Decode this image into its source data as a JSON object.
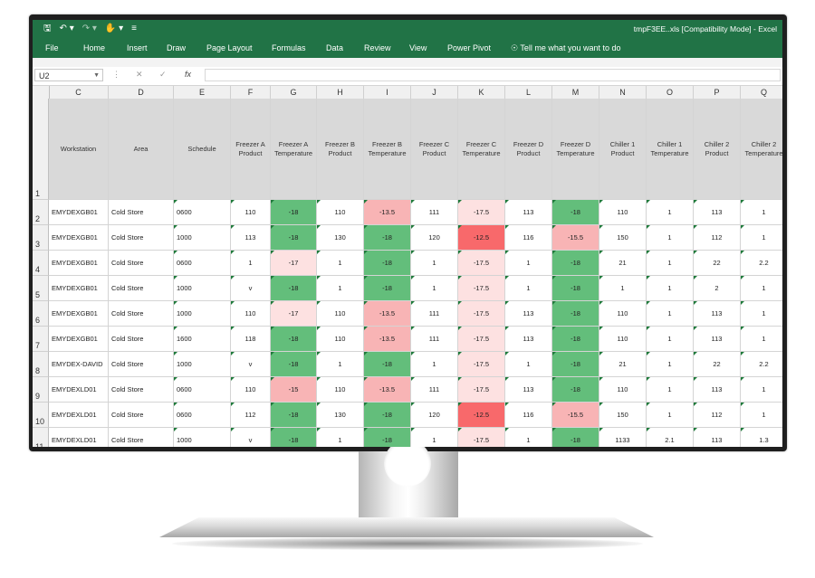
{
  "window": {
    "title": "tmpF3EE..xls  [Compatibility Mode]  -  Excel"
  },
  "quick_access": {
    "save_icon": "save-icon",
    "undo_icon": "undo-icon",
    "redo_icon": "redo-icon",
    "touch_icon": "touch-mode-icon",
    "customize_icon": "customize-icon"
  },
  "ribbon": {
    "tabs": [
      "File",
      "Home",
      "Insert",
      "Draw",
      "Page Layout",
      "Formulas",
      "Data",
      "Review",
      "View",
      "Power Pivot"
    ],
    "tell_me": "Tell me what you want to do"
  },
  "formula_bar": {
    "name_box": "U2",
    "fx_label": "fx",
    "formula": ""
  },
  "sheet": {
    "columns": [
      "C",
      "D",
      "E",
      "F",
      "G",
      "H",
      "I",
      "J",
      "K",
      "L",
      "M",
      "N",
      "O",
      "P",
      "Q"
    ],
    "header_row_number": "1",
    "headers": [
      "Workstation",
      "Area",
      "Schedule",
      "Freezer A Product",
      "Freezer A Temperature",
      "Freezer B Product",
      "Freezer B Temperature",
      "Freezer C Product",
      "Freezer C Temperature",
      "Freezer D Product",
      "Freezer D Temperature",
      "Chiller 1 Product",
      "Chiller 1 Temperature",
      "Chiller 2 Product",
      "Chiller 2 Temperature"
    ],
    "rows": [
      {
        "n": "2",
        "cells": [
          "EMYDEXGB01",
          "Cold Store",
          "0600",
          "110",
          "-18",
          "110",
          "-13.5",
          "111",
          "-17.5",
          "113",
          "-18",
          "110",
          "1",
          "113",
          "1"
        ]
      },
      {
        "n": "3",
        "cells": [
          "EMYDEXGB01",
          "Cold Store",
          "1000",
          "113",
          "-18",
          "130",
          "-18",
          "120",
          "-12.5",
          "116",
          "-15.5",
          "150",
          "1",
          "112",
          "1"
        ]
      },
      {
        "n": "4",
        "cells": [
          "EMYDEXGB01",
          "Cold Store",
          "0600",
          "1",
          "-17",
          "1",
          "-18",
          "1",
          "-17.5",
          "1",
          "-18",
          "21",
          "1",
          "22",
          "2.2"
        ]
      },
      {
        "n": "5",
        "cells": [
          "EMYDEXGB01",
          "Cold Store",
          "1000",
          "v",
          "-18",
          "1",
          "-18",
          "1",
          "-17.5",
          "1",
          "-18",
          "1",
          "1",
          "2",
          "1"
        ]
      },
      {
        "n": "6",
        "cells": [
          "EMYDEXGB01",
          "Cold Store",
          "1000",
          "110",
          "-17",
          "110",
          "-13.5",
          "111",
          "-17.5",
          "113",
          "-18",
          "110",
          "1",
          "113",
          "1"
        ]
      },
      {
        "n": "7",
        "cells": [
          "EMYDEXGB01",
          "Cold Store",
          "1600",
          "118",
          "-18",
          "110",
          "-13.5",
          "111",
          "-17.5",
          "113",
          "-18",
          "110",
          "1",
          "113",
          "1"
        ]
      },
      {
        "n": "8",
        "cells": [
          "EMYDEX-DAVID",
          "Cold Store",
          "1000",
          "v",
          "-18",
          "1",
          "-18",
          "1",
          "-17.5",
          "1",
          "-18",
          "21",
          "1",
          "22",
          "2.2"
        ]
      },
      {
        "n": "9",
        "cells": [
          "EMYDEXLD01",
          "Cold Store",
          "0600",
          "110",
          "-15",
          "110",
          "-13.5",
          "111",
          "-17.5",
          "113",
          "-18",
          "110",
          "1",
          "113",
          "1"
        ]
      },
      {
        "n": "10",
        "cells": [
          "EMYDEXLD01",
          "Cold Store",
          "0600",
          "112",
          "-18",
          "130",
          "-18",
          "120",
          "-12.5",
          "116",
          "-15.5",
          "150",
          "1",
          "112",
          "1"
        ]
      },
      {
        "n": "11",
        "cells": [
          "EMYDEXLD01",
          "Cold Store",
          "1000",
          "v",
          "-18",
          "1",
          "-18",
          "1",
          "-17.5",
          "1",
          "-18",
          "1133",
          "2.1",
          "113",
          "1.3"
        ]
      }
    ]
  },
  "colors": {
    "ribbon": "#217346",
    "good": "#63be7b",
    "bad": "#f8696b",
    "bad_light": "#f8b4b5",
    "warn_light": "#fde1e1",
    "header_fill": "#d9d9d9"
  }
}
